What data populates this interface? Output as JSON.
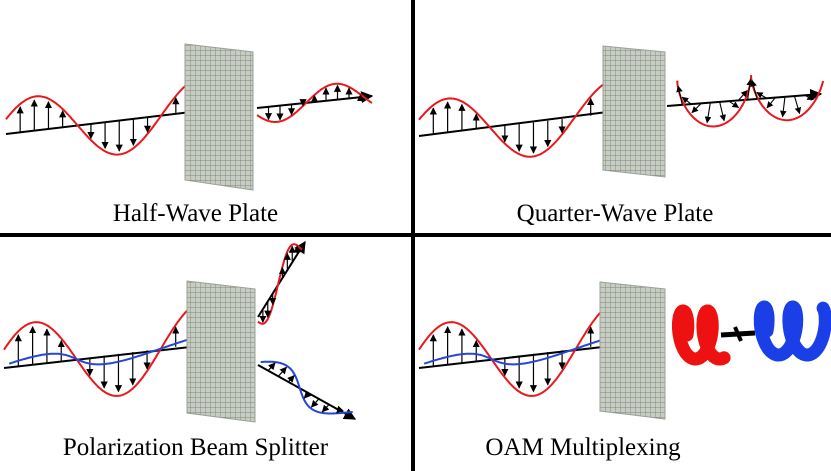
{
  "panels": {
    "half_wave": {
      "caption": "Half-Wave Plate"
    },
    "quarter_wave": {
      "caption": "Quarter-Wave Plate"
    },
    "pbs": {
      "caption": "Polarization Beam Splitter"
    },
    "oam": {
      "caption": "OAM Multiplexing"
    }
  },
  "colors": {
    "wave_red": "#e8191c",
    "wave_blue": "#2546d6",
    "axis": "#000000",
    "plate_fill": "#c8cdc4",
    "plate_grid": "#7d857a",
    "helix_red": "#ee1111",
    "helix_blue": "#1a3fe6"
  }
}
